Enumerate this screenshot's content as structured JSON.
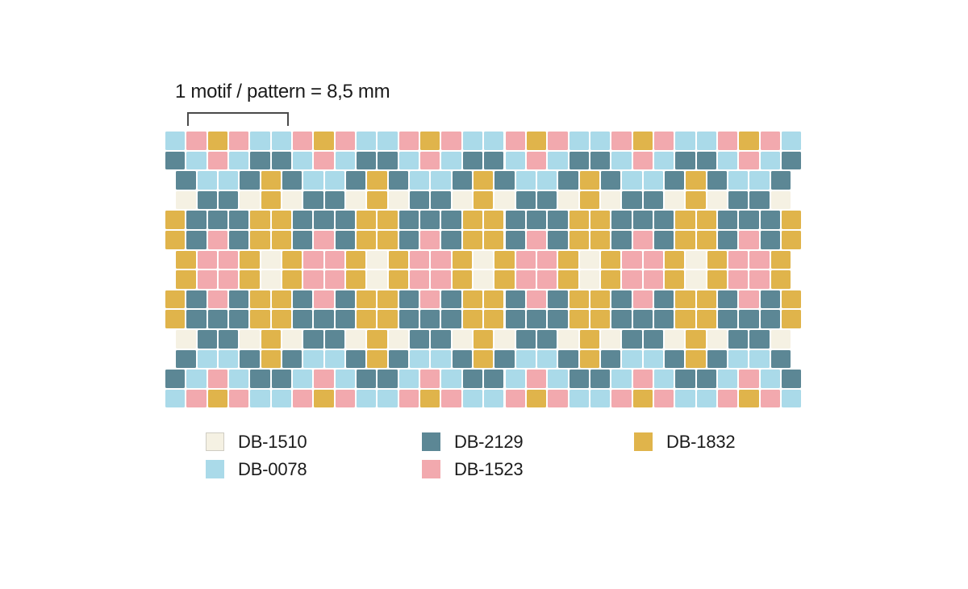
{
  "title": {
    "text": "1 motif / pattern = 8,5 mm"
  },
  "legend": {
    "items": [
      {
        "code": "DB-1510",
        "color": "#F5F1E3",
        "border": "#CFCCC3"
      },
      {
        "code": "DB-2129",
        "color": "#5C8795",
        "border": null
      },
      {
        "code": "DB-1832",
        "color": "#E0B44B",
        "border": null
      },
      {
        "code": "DB-0078",
        "color": "#AADAE9",
        "border": null
      },
      {
        "code": "DB-1523",
        "color": "#F2A9AE",
        "border": null
      }
    ]
  },
  "grid": {
    "columns": 30,
    "row_count": 14,
    "palette": {
      "C": {
        "code": "DB-1510",
        "hex": "#F5F1E3"
      },
      "B": {
        "code": "DB-0078",
        "hex": "#AADAE9"
      },
      "T": {
        "code": "DB-2129",
        "hex": "#5C8795"
      },
      "P": {
        "code": "DB-1523",
        "hex": "#F2A9AE"
      },
      "G": {
        "code": "DB-1832",
        "hex": "#E0B44B"
      }
    },
    "motif_width_beads": 5,
    "rows": [
      {
        "offset": false,
        "cells": [
          "B",
          "P",
          "G",
          "P",
          "B",
          "B",
          "P",
          "G",
          "P",
          "B",
          "B",
          "P",
          "G",
          "P",
          "B",
          "B",
          "P",
          "G",
          "P",
          "B",
          "B",
          "P",
          "G",
          "P",
          "B",
          "B",
          "P",
          "G",
          "P",
          "B"
        ]
      },
      {
        "offset": false,
        "cells": [
          "T",
          "B",
          "P",
          "B",
          "T",
          "T",
          "B",
          "P",
          "B",
          "T",
          "T",
          "B",
          "P",
          "B",
          "T",
          "T",
          "B",
          "P",
          "B",
          "T",
          "T",
          "B",
          "P",
          "B",
          "T",
          "T",
          "B",
          "P",
          "B",
          "T"
        ]
      },
      {
        "offset": true,
        "cells": [
          "T",
          "B",
          "B",
          "T",
          "G",
          "T",
          "B",
          "B",
          "T",
          "G",
          "T",
          "B",
          "B",
          "T",
          "G",
          "T",
          "B",
          "B",
          "T",
          "G",
          "T",
          "B",
          "B",
          "T",
          "G",
          "T",
          "B",
          "B",
          "T"
        ]
      },
      {
        "offset": true,
        "cells": [
          "C",
          "T",
          "T",
          "C",
          "G",
          "C",
          "T",
          "T",
          "C",
          "G",
          "C",
          "T",
          "T",
          "C",
          "G",
          "C",
          "T",
          "T",
          "C",
          "G",
          "C",
          "T",
          "T",
          "C",
          "G",
          "C",
          "T",
          "T",
          "C"
        ]
      },
      {
        "offset": false,
        "cells": [
          "G",
          "T",
          "T",
          "T",
          "G",
          "G",
          "T",
          "T",
          "T",
          "G",
          "G",
          "T",
          "T",
          "T",
          "G",
          "G",
          "T",
          "T",
          "T",
          "G",
          "G",
          "T",
          "T",
          "T",
          "G",
          "G",
          "T",
          "T",
          "T",
          "G"
        ]
      },
      {
        "offset": false,
        "cells": [
          "G",
          "T",
          "P",
          "T",
          "G",
          "G",
          "T",
          "P",
          "T",
          "G",
          "G",
          "T",
          "P",
          "T",
          "G",
          "G",
          "T",
          "P",
          "T",
          "G",
          "G",
          "T",
          "P",
          "T",
          "G",
          "G",
          "T",
          "P",
          "T",
          "G"
        ]
      },
      {
        "offset": true,
        "cells": [
          "G",
          "P",
          "P",
          "G",
          "C",
          "G",
          "P",
          "P",
          "G",
          "C",
          "G",
          "P",
          "P",
          "G",
          "C",
          "G",
          "P",
          "P",
          "G",
          "C",
          "G",
          "P",
          "P",
          "G",
          "C",
          "G",
          "P",
          "P",
          "G"
        ]
      },
      {
        "offset": true,
        "cells": [
          "G",
          "P",
          "P",
          "G",
          "C",
          "G",
          "P",
          "P",
          "G",
          "C",
          "G",
          "P",
          "P",
          "G",
          "C",
          "G",
          "P",
          "P",
          "G",
          "C",
          "G",
          "P",
          "P",
          "G",
          "C",
          "G",
          "P",
          "P",
          "G"
        ]
      },
      {
        "offset": false,
        "cells": [
          "G",
          "T",
          "P",
          "T",
          "G",
          "G",
          "T",
          "P",
          "T",
          "G",
          "G",
          "T",
          "P",
          "T",
          "G",
          "G",
          "T",
          "P",
          "T",
          "G",
          "G",
          "T",
          "P",
          "T",
          "G",
          "G",
          "T",
          "P",
          "T",
          "G"
        ]
      },
      {
        "offset": false,
        "cells": [
          "G",
          "T",
          "T",
          "T",
          "G",
          "G",
          "T",
          "T",
          "T",
          "G",
          "G",
          "T",
          "T",
          "T",
          "G",
          "G",
          "T",
          "T",
          "T",
          "G",
          "G",
          "T",
          "T",
          "T",
          "G",
          "G",
          "T",
          "T",
          "T",
          "G"
        ]
      },
      {
        "offset": true,
        "cells": [
          "C",
          "T",
          "T",
          "C",
          "G",
          "C",
          "T",
          "T",
          "C",
          "G",
          "C",
          "T",
          "T",
          "C",
          "G",
          "C",
          "T",
          "T",
          "C",
          "G",
          "C",
          "T",
          "T",
          "C",
          "G",
          "C",
          "T",
          "T",
          "C"
        ]
      },
      {
        "offset": true,
        "cells": [
          "T",
          "B",
          "B",
          "T",
          "G",
          "T",
          "B",
          "B",
          "T",
          "G",
          "T",
          "B",
          "B",
          "T",
          "G",
          "T",
          "B",
          "B",
          "T",
          "G",
          "T",
          "B",
          "B",
          "T",
          "G",
          "T",
          "B",
          "B",
          "T"
        ]
      },
      {
        "offset": false,
        "cells": [
          "T",
          "B",
          "P",
          "B",
          "T",
          "T",
          "B",
          "P",
          "B",
          "T",
          "T",
          "B",
          "P",
          "B",
          "T",
          "T",
          "B",
          "P",
          "B",
          "T",
          "T",
          "B",
          "P",
          "B",
          "T",
          "T",
          "B",
          "P",
          "B",
          "T"
        ]
      },
      {
        "offset": false,
        "cells": [
          "B",
          "P",
          "G",
          "P",
          "B",
          "B",
          "P",
          "G",
          "P",
          "B",
          "B",
          "P",
          "G",
          "P",
          "B",
          "B",
          "P",
          "G",
          "P",
          "B",
          "B",
          "P",
          "G",
          "P",
          "B",
          "B",
          "P",
          "G",
          "P",
          "B"
        ]
      }
    ]
  }
}
